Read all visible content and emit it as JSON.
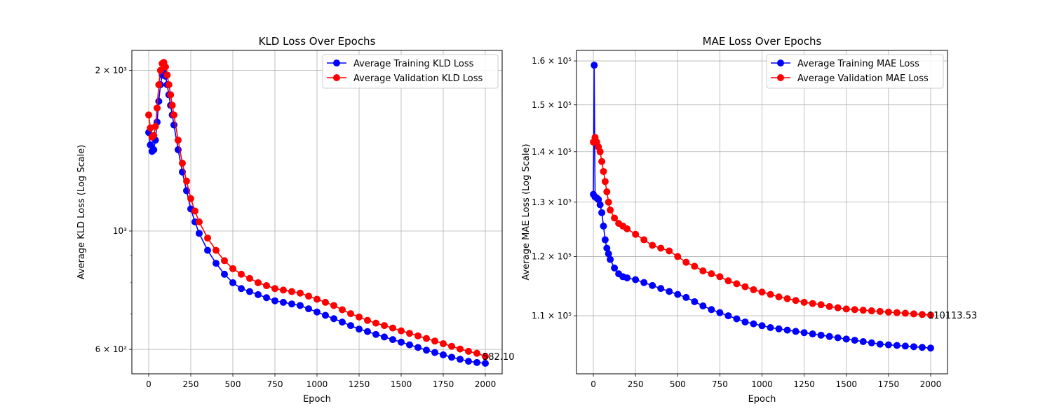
{
  "chart_data": [
    {
      "type": "line",
      "title": "KLD Loss Over Epochs",
      "xlabel": "Epoch",
      "ylabel": "Average KLD Loss (Log Scale)",
      "yscale": "log",
      "xlim": [
        -100,
        2100
      ],
      "ylim": [
        540,
        2180
      ],
      "xticks": [
        0,
        250,
        500,
        750,
        1000,
        1250,
        1500,
        1750,
        2000
      ],
      "yticks": [
        {
          "value": 600,
          "label": "6 × 10²"
        },
        {
          "value": 1000,
          "label": "10³"
        },
        {
          "value": 2000,
          "label": "2 × 10³"
        }
      ],
      "grid": true,
      "legend_position": "top-right",
      "series": [
        {
          "name": "Average Training KLD Loss",
          "color": "#0000ff",
          "marker": "circle",
          "x": [
            0,
            10,
            20,
            30,
            40,
            50,
            60,
            70,
            80,
            90,
            100,
            110,
            120,
            130,
            140,
            150,
            175,
            200,
            225,
            250,
            275,
            300,
            350,
            400,
            450,
            500,
            550,
            600,
            650,
            700,
            750,
            800,
            850,
            900,
            950,
            1000,
            1050,
            1100,
            1150,
            1200,
            1250,
            1300,
            1350,
            1400,
            1450,
            1500,
            1550,
            1600,
            1650,
            1700,
            1750,
            1800,
            1850,
            1900,
            1950,
            2000
          ],
          "y": [
            1530,
            1450,
            1410,
            1420,
            1480,
            1600,
            1750,
            1880,
            1960,
            1990,
            1950,
            1880,
            1800,
            1720,
            1650,
            1580,
            1420,
            1290,
            1190,
            1100,
            1040,
            990,
            920,
            870,
            830,
            800,
            780,
            770,
            760,
            750,
            740,
            735,
            730,
            725,
            715,
            705,
            695,
            685,
            675,
            665,
            655,
            648,
            640,
            633,
            626,
            619,
            612,
            605,
            598,
            592,
            586,
            580,
            575,
            570,
            567,
            565
          ]
        },
        {
          "name": "Average Validation KLD Loss",
          "color": "#ff0000",
          "marker": "circle",
          "x": [
            0,
            10,
            20,
            30,
            40,
            50,
            60,
            70,
            80,
            90,
            100,
            110,
            120,
            130,
            140,
            150,
            175,
            200,
            225,
            250,
            275,
            300,
            350,
            400,
            450,
            500,
            550,
            600,
            650,
            700,
            750,
            800,
            850,
            900,
            950,
            1000,
            1050,
            1100,
            1150,
            1200,
            1250,
            1300,
            1350,
            1400,
            1450,
            1500,
            1550,
            1600,
            1650,
            1700,
            1750,
            1800,
            1850,
            1900,
            1950,
            2000
          ],
          "y": [
            1650,
            1560,
            1500,
            1510,
            1570,
            1700,
            1880,
            2000,
            2060,
            2070,
            2030,
            1960,
            1880,
            1800,
            1720,
            1650,
            1480,
            1340,
            1240,
            1150,
            1090,
            1040,
            970,
            920,
            880,
            850,
            830,
            815,
            800,
            790,
            780,
            775,
            770,
            765,
            755,
            745,
            735,
            725,
            712,
            700,
            690,
            680,
            672,
            665,
            658,
            650,
            643,
            636,
            629,
            622,
            615,
            608,
            601,
            595,
            590,
            582
          ]
        }
      ],
      "annotation": "582.10"
    },
    {
      "type": "line",
      "title": "MAE Loss Over Epochs",
      "xlabel": "Epoch",
      "ylabel": "Average MAE Loss (Log Scale)",
      "yscale": "log",
      "xlim": [
        -100,
        2100
      ],
      "ylim": [
        101000,
        162500
      ],
      "xticks": [
        0,
        250,
        500,
        750,
        1000,
        1250,
        1500,
        1750,
        2000
      ],
      "yticks": [
        {
          "value": 110000,
          "label": "1.1 × 10⁵"
        },
        {
          "value": 120000,
          "label": "1.2 × 10⁵"
        },
        {
          "value": 130000,
          "label": "1.3 × 10⁵"
        },
        {
          "value": 140000,
          "label": "1.4 × 10⁵"
        },
        {
          "value": 150000,
          "label": "1.5 × 10⁵"
        },
        {
          "value": 160000,
          "label": "1.6 × 10⁵"
        }
      ],
      "grid": true,
      "legend_position": "top-right",
      "series": [
        {
          "name": "Average Training MAE Loss",
          "color": "#0000ff",
          "marker": "circle",
          "x": [
            0,
            5,
            10,
            20,
            30,
            40,
            50,
            60,
            70,
            80,
            90,
            100,
            125,
            150,
            175,
            200,
            250,
            300,
            350,
            400,
            450,
            500,
            550,
            600,
            650,
            700,
            750,
            800,
            850,
            900,
            950,
            1000,
            1050,
            1100,
            1150,
            1200,
            1250,
            1300,
            1350,
            1400,
            1450,
            1500,
            1550,
            1600,
            1650,
            1700,
            1750,
            1800,
            1850,
            1900,
            1950,
            2000
          ],
          "y": [
            131500,
            159000,
            131000,
            130800,
            130500,
            129500,
            128000,
            125500,
            123000,
            121500,
            120500,
            119500,
            118000,
            117000,
            116500,
            116300,
            116000,
            115500,
            115000,
            114500,
            114000,
            113500,
            113000,
            112300,
            111600,
            111000,
            110500,
            110000,
            109500,
            109000,
            108700,
            108400,
            108100,
            107900,
            107700,
            107500,
            107300,
            107100,
            106900,
            106700,
            106500,
            106300,
            106100,
            105900,
            105700,
            105500,
            105400,
            105300,
            105200,
            105100,
            105000,
            104900
          ]
        },
        {
          "name": "Average Validation MAE Loss",
          "color": "#ff0000",
          "marker": "circle",
          "x": [
            0,
            10,
            20,
            30,
            40,
            50,
            60,
            70,
            80,
            90,
            100,
            125,
            150,
            175,
            200,
            250,
            300,
            350,
            400,
            450,
            500,
            550,
            600,
            650,
            700,
            750,
            800,
            850,
            900,
            950,
            1000,
            1050,
            1100,
            1150,
            1200,
            1250,
            1300,
            1350,
            1400,
            1450,
            1500,
            1550,
            1600,
            1650,
            1700,
            1750,
            1800,
            1850,
            1900,
            1950,
            2000
          ],
          "y": [
            142000,
            143000,
            142000,
            141000,
            140000,
            138000,
            136000,
            134000,
            132000,
            130000,
            128500,
            127000,
            126000,
            125500,
            125000,
            124000,
            123000,
            122000,
            121500,
            121000,
            120000,
            119000,
            118300,
            117500,
            117000,
            116500,
            115800,
            115300,
            114800,
            114300,
            113900,
            113500,
            113100,
            112800,
            112500,
            112200,
            112000,
            111800,
            111500,
            111300,
            111100,
            111000,
            110900,
            110800,
            110700,
            110600,
            110500,
            110400,
            110300,
            110200,
            110113.53
          ]
        }
      ],
      "annotation": "110113.53"
    }
  ]
}
